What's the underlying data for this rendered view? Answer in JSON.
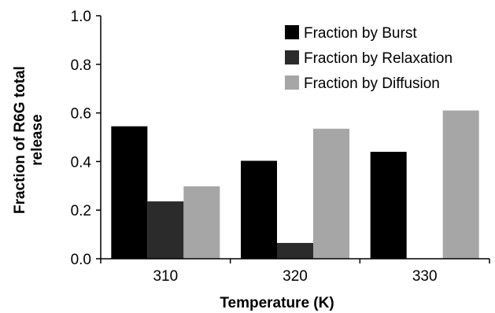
{
  "chart_data": {
    "type": "bar",
    "categories": [
      "310",
      "320",
      "330"
    ],
    "series": [
      {
        "name": "Fraction by Burst",
        "color": "#000000",
        "values": [
          0.545,
          0.403,
          0.44
        ]
      },
      {
        "name": "Fraction by Relaxation",
        "color": "#2b2b2b",
        "values": [
          0.236,
          0.065,
          0.0
        ]
      },
      {
        "name": "Fraction by Diffusion",
        "color": "#a6a6a6",
        "values": [
          0.298,
          0.535,
          0.61
        ]
      }
    ],
    "xlabel": "Temperature (K)",
    "ylabel_lines": [
      "Fraction of R6G total",
      "release"
    ],
    "ylim": [
      0,
      1.0
    ],
    "yticks": [
      "0.0",
      "0.2",
      "0.4",
      "0.6",
      "0.8",
      "1.0"
    ],
    "grid": false,
    "legend_position": "top-right"
  }
}
